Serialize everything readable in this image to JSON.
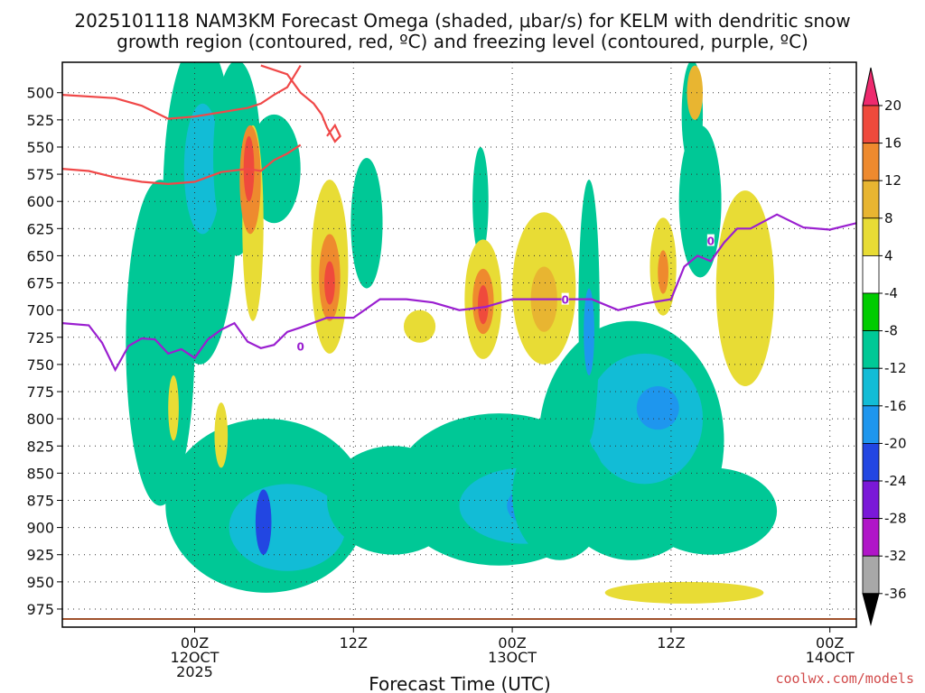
{
  "chart_data": {
    "type": "heatmap",
    "title_line1": "2025101118 NAM3KM Forecast Omega (shaded, μbar/s) for KELM with dendritic snow",
    "title_line2": "growth region (contoured, red, ºC) and freezing level (contoured, purple, ºC)",
    "xlabel": "Forecast Time (UTC)",
    "credit": "coolwx.com/models",
    "x_hours_range": [
      -5,
      25
    ],
    "y_pressure_range": [
      472,
      985
    ],
    "y_ticks": [
      500,
      525,
      550,
      575,
      600,
      625,
      650,
      675,
      700,
      725,
      750,
      775,
      800,
      825,
      850,
      875,
      900,
      925,
      950,
      975
    ],
    "x_ticks": [
      {
        "hour": 0,
        "lines": [
          "00Z",
          "12OCT",
          "2025"
        ]
      },
      {
        "hour": 6,
        "lines": [
          "12Z"
        ]
      },
      {
        "hour": 12,
        "lines": [
          "00Z",
          "13OCT"
        ]
      },
      {
        "hour": 18,
        "lines": [
          "12Z"
        ]
      },
      {
        "hour": 24,
        "lines": [
          "00Z",
          "14OCT"
        ]
      }
    ],
    "colorbar": {
      "levels": [
        20,
        16,
        12,
        8,
        4,
        -4,
        -8,
        -12,
        -16,
        -20,
        -24,
        -28,
        -32,
        -36
      ],
      "colors": [
        "#ee2a6e",
        "#ef4a3c",
        "#ee8a2e",
        "#e8b531",
        "#e8dc35",
        "#ffffff",
        "#00cc00",
        "#00c896",
        "#12bcd6",
        "#1e96ee",
        "#2246e2",
        "#7a18d8",
        "#b016c8",
        "#a8a8a8",
        "#000000"
      ]
    },
    "freezing_level_label": "0",
    "freezing_level": {
      "hour": [
        -5,
        -4,
        -3.5,
        -3,
        -2.5,
        -2,
        -1.5,
        -1,
        -0.5,
        0,
        0.5,
        1,
        1.5,
        2,
        2.5,
        3,
        3.5,
        4,
        5,
        6,
        7,
        8,
        9,
        10,
        11,
        12,
        13,
        14,
        15,
        16,
        17,
        18,
        18.5,
        19,
        19.5,
        20,
        20.5,
        21,
        22,
        23,
        24,
        25
      ],
      "pressure": [
        712,
        714,
        730,
        755,
        733,
        726,
        727,
        740,
        736,
        744,
        727,
        718,
        712,
        729,
        735,
        732,
        720,
        716,
        707,
        707,
        690,
        690,
        693,
        700,
        697,
        690,
        690,
        690,
        690,
        700,
        694,
        690,
        660,
        650,
        655,
        638,
        625,
        625,
        612,
        624,
        626,
        620
      ]
    },
    "dgz_contours": [
      {
        "hour": [
          -5,
          -3,
          -2,
          -1,
          0,
          1,
          2,
          2.5,
          3,
          3.5,
          4
        ],
        "pressure": [
          502,
          505,
          512,
          524,
          522,
          518,
          514,
          510,
          502,
          495,
          475
        ]
      },
      {
        "hour": [
          -5,
          -4,
          -3,
          -2,
          -1,
          0,
          1,
          2,
          2.5,
          3,
          3.5,
          4
        ],
        "pressure": [
          570,
          572,
          578,
          582,
          584,
          582,
          573,
          570,
          572,
          562,
          556,
          548
        ]
      },
      {
        "hour": [
          2.5,
          3.5,
          4,
          4.5,
          4.8,
          5,
          5.3,
          5.5,
          5.3,
          5
        ],
        "pressure": [
          475,
          483,
          500,
          510,
          520,
          532,
          545,
          540,
          530,
          540
        ]
      }
    ],
    "omega_cells": [
      {
        "hour": -1.3,
        "pressure": 730,
        "rx": 1.3,
        "ry": 150,
        "value": -8
      },
      {
        "hour": 0.2,
        "pressure": 600,
        "rx": 1.4,
        "ry": 150,
        "value": -8
      },
      {
        "hour": 0.3,
        "pressure": 570,
        "rx": 0.7,
        "ry": 60,
        "value": -12
      },
      {
        "hour": 1.6,
        "pressure": 560,
        "rx": 0.9,
        "ry": 90,
        "value": -8
      },
      {
        "hour": 3,
        "pressure": 570,
        "rx": 1.0,
        "ry": 50,
        "value": -8
      },
      {
        "hour": 6.5,
        "pressure": 620,
        "rx": 0.6,
        "ry": 60,
        "value": -8
      },
      {
        "hour": 2.7,
        "pressure": 880,
        "rx": 3.8,
        "ry": 80,
        "value": -8
      },
      {
        "hour": 3.5,
        "pressure": 900,
        "rx": 2.2,
        "ry": 40,
        "value": -12
      },
      {
        "hour": 2.6,
        "pressure": 895,
        "rx": 0.3,
        "ry": 30,
        "value": -20
      },
      {
        "hour": 7.5,
        "pressure": 875,
        "rx": 2.5,
        "ry": 50,
        "value": -8
      },
      {
        "hour": 11.5,
        "pressure": 865,
        "rx": 4.0,
        "ry": 70,
        "value": -8
      },
      {
        "hour": 12.5,
        "pressure": 880,
        "rx": 2.5,
        "ry": 35,
        "value": -12
      },
      {
        "hour": 13,
        "pressure": 880,
        "rx": 1.2,
        "ry": 20,
        "value": -16
      },
      {
        "hour": 16.5,
        "pressure": 820,
        "rx": 3.5,
        "ry": 110,
        "value": -8
      },
      {
        "hour": 17,
        "pressure": 800,
        "rx": 2.2,
        "ry": 60,
        "value": -12
      },
      {
        "hour": 17.5,
        "pressure": 790,
        "rx": 0.8,
        "ry": 20,
        "value": -16
      },
      {
        "hour": 14.9,
        "pressure": 700,
        "rx": 0.4,
        "ry": 120,
        "value": -8
      },
      {
        "hour": 14.9,
        "pressure": 720,
        "rx": 0.2,
        "ry": 40,
        "value": -16
      },
      {
        "hour": 19.1,
        "pressure": 600,
        "rx": 0.8,
        "ry": 70,
        "value": -8
      },
      {
        "hour": 18.8,
        "pressure": 520,
        "rx": 0.4,
        "ry": 50,
        "value": -8
      },
      {
        "hour": 10.8,
        "pressure": 600,
        "rx": 0.3,
        "ry": 50,
        "value": -8
      },
      {
        "hour": 19.5,
        "pressure": 885,
        "rx": 2.5,
        "ry": 40,
        "value": -8
      },
      {
        "hour": 13.8,
        "pressure": 870,
        "rx": 1.8,
        "ry": 60,
        "value": -8
      },
      {
        "hour": 2.2,
        "pressure": 620,
        "rx": 0.4,
        "ry": 90,
        "value": 4
      },
      {
        "hour": 2.1,
        "pressure": 580,
        "rx": 0.4,
        "ry": 50,
        "value": 12
      },
      {
        "hour": 2.05,
        "pressure": 570,
        "rx": 0.2,
        "ry": 30,
        "value": 16
      },
      {
        "hour": 5.1,
        "pressure": 660,
        "rx": 0.7,
        "ry": 80,
        "value": 4
      },
      {
        "hour": 5.1,
        "pressure": 670,
        "rx": 0.4,
        "ry": 40,
        "value": 12
      },
      {
        "hour": 5.1,
        "pressure": 675,
        "rx": 0.2,
        "ry": 20,
        "value": 16
      },
      {
        "hour": 10.9,
        "pressure": 690,
        "rx": 0.7,
        "ry": 55,
        "value": 4
      },
      {
        "hour": 10.9,
        "pressure": 692,
        "rx": 0.4,
        "ry": 30,
        "value": 12
      },
      {
        "hour": 10.9,
        "pressure": 695,
        "rx": 0.2,
        "ry": 18,
        "value": 16
      },
      {
        "hour": 13.2,
        "pressure": 680,
        "rx": 1.2,
        "ry": 70,
        "value": 4
      },
      {
        "hour": 13.2,
        "pressure": 690,
        "rx": 0.5,
        "ry": 30,
        "value": 8
      },
      {
        "hour": 17.7,
        "pressure": 660,
        "rx": 0.5,
        "ry": 45,
        "value": 4
      },
      {
        "hour": 17.7,
        "pressure": 665,
        "rx": 0.2,
        "ry": 20,
        "value": 12
      },
      {
        "hour": 20.8,
        "pressure": 680,
        "rx": 1.1,
        "ry": 90,
        "value": 4
      },
      {
        "hour": 18.9,
        "pressure": 500,
        "rx": 0.3,
        "ry": 25,
        "value": 8
      },
      {
        "hour": 18.5,
        "pressure": 960,
        "rx": 3.0,
        "ry": 10,
        "value": 4
      },
      {
        "hour": -0.8,
        "pressure": 790,
        "rx": 0.2,
        "ry": 30,
        "value": 4
      },
      {
        "hour": 1.0,
        "pressure": 815,
        "rx": 0.25,
        "ry": 30,
        "value": 4
      },
      {
        "hour": 8.5,
        "pressure": 715,
        "rx": 0.6,
        "ry": 15,
        "value": 4
      }
    ]
  }
}
